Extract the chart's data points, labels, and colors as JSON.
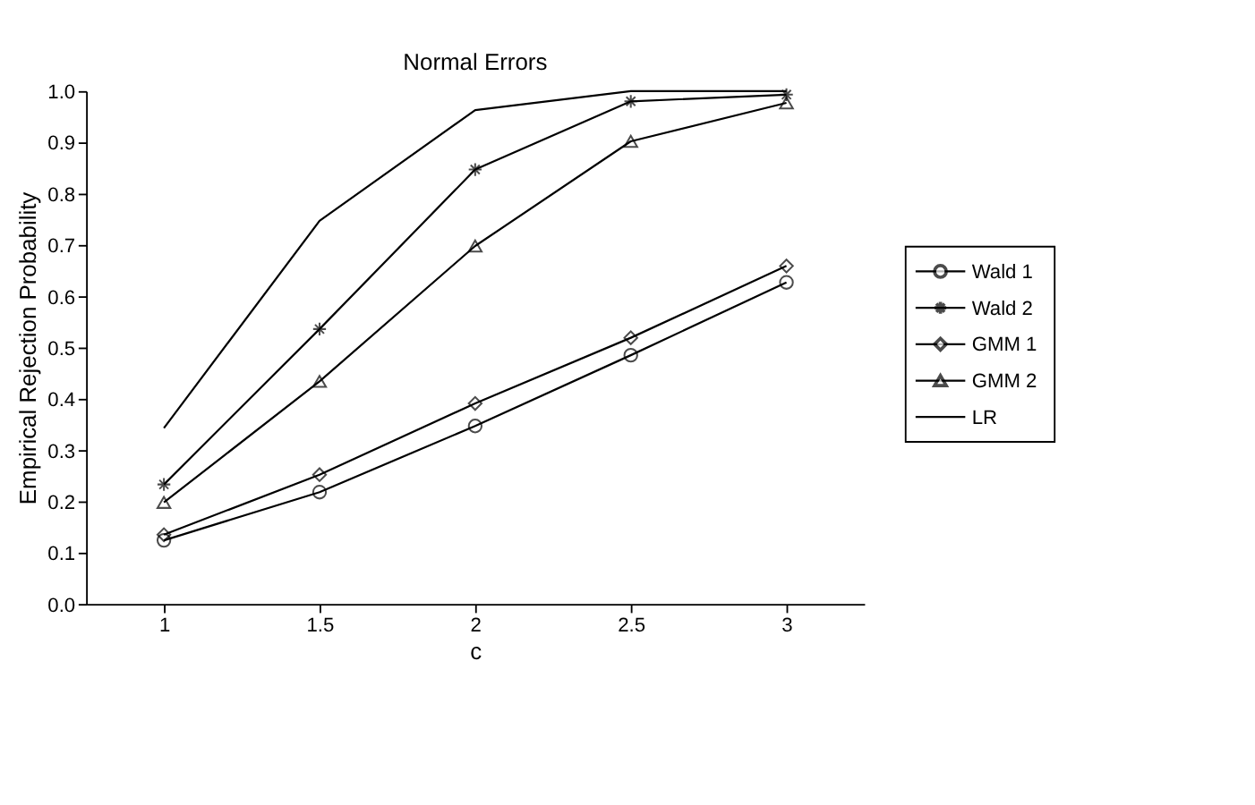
{
  "chart_data": {
    "type": "line",
    "title": "Normal Errors",
    "xlabel": "c",
    "ylabel": "Empirical Rejection Probability",
    "categories": [
      "1",
      "1.5",
      "2",
      "2.5",
      "3"
    ],
    "series": [
      {
        "name": "Wald 1",
        "color": "#000000",
        "marker": "circle",
        "values": [
          0.124,
          0.218,
          0.347,
          0.485,
          0.627
        ]
      },
      {
        "name": "Wald 2",
        "color": "#000000",
        "marker": "cross",
        "values": [
          0.233,
          0.536,
          0.847,
          0.98,
          0.993
        ]
      },
      {
        "name": "GMM 1",
        "color": "#000000",
        "marker": "diamond",
        "values": [
          0.135,
          0.252,
          0.391,
          0.519,
          0.659
        ]
      },
      {
        "name": "GMM 2",
        "color": "#000000",
        "marker": "triangle",
        "values": [
          0.198,
          0.434,
          0.698,
          0.902,
          0.977
        ]
      },
      {
        "name": "LR",
        "color": "#000000",
        "marker": "none",
        "values": [
          0.343,
          0.747,
          0.963,
          1.0,
          1.0
        ]
      }
    ],
    "ylim": [
      0,
      1
    ],
    "yticks": [
      {
        "value": 0,
        "label": "0.0"
      },
      {
        "value": 0.1,
        "label": "0.1"
      },
      {
        "value": 0.2,
        "label": "0.2"
      },
      {
        "value": 0.3,
        "label": "0.3"
      },
      {
        "value": 0.4,
        "label": "0.4"
      },
      {
        "value": 0.5,
        "label": "0.5"
      },
      {
        "value": 0.6,
        "label": "0.6"
      },
      {
        "value": 0.7,
        "label": "0.7"
      },
      {
        "value": 0.8,
        "label": "0.8"
      },
      {
        "value": 0.9,
        "label": "0.9"
      },
      {
        "value": 1,
        "label": "1.0"
      }
    ],
    "grid": false,
    "legend": "right",
    "line_style": "solid"
  }
}
